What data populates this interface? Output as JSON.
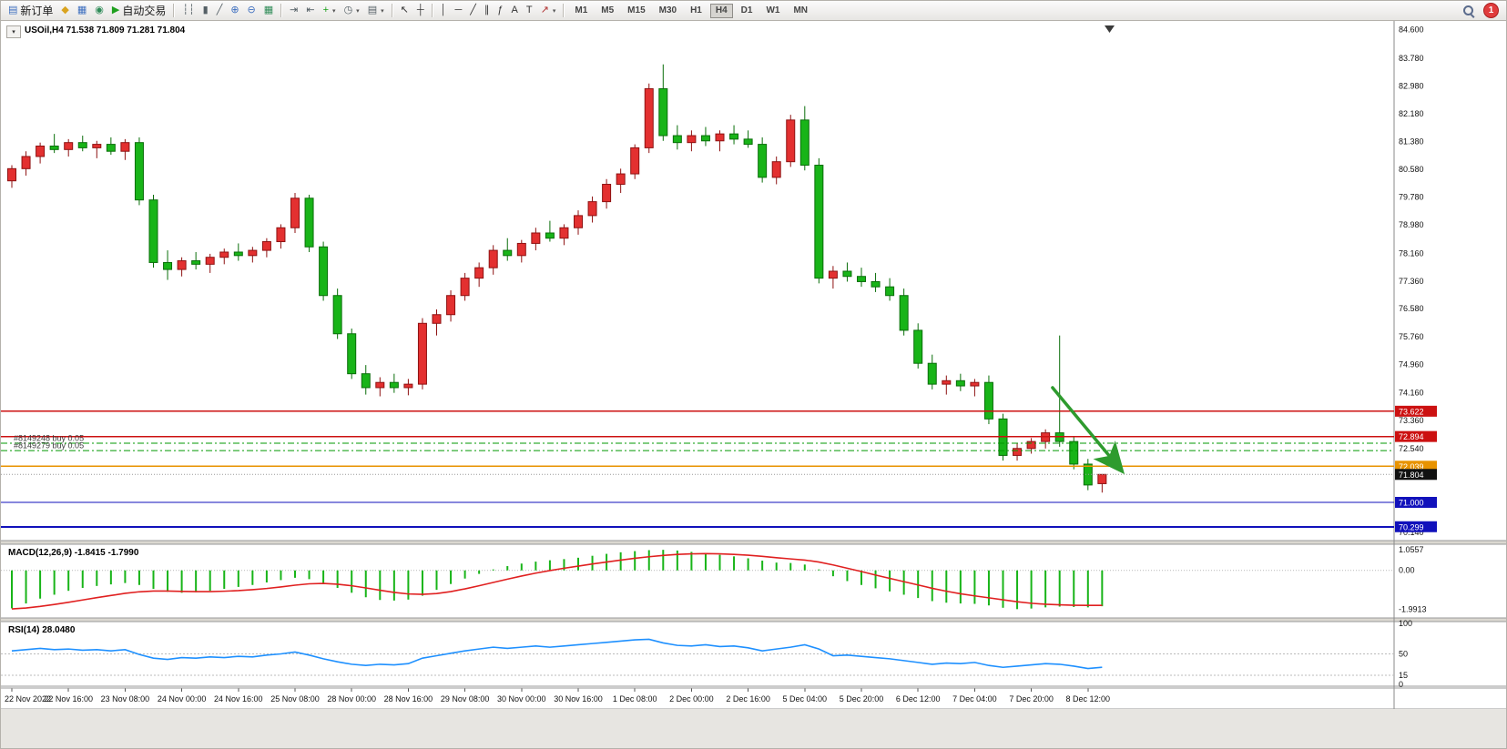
{
  "window": {
    "app_background": "#ececec"
  },
  "toolbar": {
    "active_timeframe": "H4",
    "notification_count": "1",
    "items": [
      {
        "type": "button",
        "name": "new-order-button",
        "glyph": "▤",
        "glyph_color": "#3c6ebf",
        "label": "新订单"
      },
      {
        "type": "icon",
        "name": "profile-icon",
        "glyph": "◆",
        "glyph_color": "#d9a31f"
      },
      {
        "type": "icon",
        "name": "chart-window-icon",
        "glyph": "▦",
        "glyph_color": "#3c6ebf"
      },
      {
        "type": "icon",
        "name": "sound-alert-icon",
        "glyph": "◉",
        "glyph_color": "#2e8b57"
      },
      {
        "type": "button",
        "name": "autotrading-button",
        "glyph": "▶",
        "glyph_color": "#1fa01f",
        "label": "自动交易"
      },
      {
        "type": "sep"
      },
      {
        "type": "icon",
        "name": "bars-chart-icon",
        "glyph": "┆┆",
        "glyph_color": "#556066"
      },
      {
        "type": "icon",
        "name": "candlestick-chart-icon",
        "glyph": "▮",
        "glyph_color": "#556066"
      },
      {
        "type": "icon",
        "name": "line-chart-icon",
        "glyph": "╱",
        "glyph_color": "#556066"
      },
      {
        "type": "icon",
        "name": "zoom-in-icon",
        "glyph": "⊕",
        "glyph_color": "#3c6ebf"
      },
      {
        "type": "icon",
        "name": "zoom-out-icon",
        "glyph": "⊖",
        "glyph_color": "#3c6ebf"
      },
      {
        "type": "icon",
        "name": "tile-windows-icon",
        "glyph": "▦",
        "glyph_color": "#2e8b57"
      },
      {
        "type": "sep"
      },
      {
        "type": "icon",
        "name": "auto-scroll-icon",
        "glyph": "⇥",
        "glyph_color": "#556066"
      },
      {
        "type": "icon",
        "name": "chart-shift-icon",
        "glyph": "⇤",
        "glyph_color": "#556066"
      },
      {
        "type": "icon",
        "name": "indicators-icon",
        "glyph": "+",
        "glyph_color": "#18a018",
        "dropdown": true
      },
      {
        "type": "icon",
        "name": "periods-icon",
        "glyph": "◷",
        "glyph_color": "#556066",
        "dropdown": true
      },
      {
        "type": "icon",
        "name": "templates-icon",
        "glyph": "▤",
        "glyph_color": "#556066",
        "dropdown": true
      },
      {
        "type": "sep"
      },
      {
        "type": "icon",
        "name": "cursor-icon",
        "glyph": "↖",
        "glyph_color": "#333333"
      },
      {
        "type": "icon",
        "name": "crosshair-icon",
        "glyph": "┼",
        "glyph_color": "#333333"
      },
      {
        "type": "sep"
      },
      {
        "type": "icon",
        "name": "vertical-line-icon",
        "glyph": "│",
        "glyph_color": "#333333"
      },
      {
        "type": "icon",
        "name": "horizontal-line-icon",
        "glyph": "─",
        "glyph_color": "#333333"
      },
      {
        "type": "icon",
        "name": "trendline-icon",
        "glyph": "╱",
        "glyph_color": "#333333"
      },
      {
        "type": "icon",
        "name": "channel-icon",
        "glyph": "∥",
        "glyph_color": "#333333"
      },
      {
        "type": "icon",
        "name": "fibonacci-icon",
        "glyph": "ƒ",
        "glyph_color": "#333333"
      },
      {
        "type": "icon",
        "name": "text-icon",
        "glyph": "A",
        "glyph_color": "#333333"
      },
      {
        "type": "icon",
        "name": "text-label-icon",
        "glyph": "T",
        "glyph_color": "#333333"
      },
      {
        "type": "icon",
        "name": "arrows-icon",
        "glyph": "↗",
        "glyph_color": "#b03030",
        "dropdown": true
      },
      {
        "type": "sep"
      },
      {
        "type": "tf",
        "label": "M1"
      },
      {
        "type": "tf",
        "label": "M5"
      },
      {
        "type": "tf",
        "label": "M15"
      },
      {
        "type": "tf",
        "label": "M30"
      },
      {
        "type": "tf",
        "label": "H1"
      },
      {
        "type": "tf",
        "label": "H4"
      },
      {
        "type": "tf",
        "label": "D1"
      },
      {
        "type": "tf",
        "label": "W1"
      },
      {
        "type": "tf",
        "label": "MN"
      },
      {
        "type": "spacer"
      },
      {
        "type": "search",
        "name": "search-icon"
      },
      {
        "type": "badge",
        "name": "notification-badge",
        "label": "1"
      }
    ]
  },
  "chart": {
    "title": "USOil,H4 71.538 71.809 71.281 71.804",
    "symbol_dropdown_glyph": "▾",
    "price_axis_labels": [
      84.6,
      83.78,
      82.98,
      82.18,
      81.38,
      80.58,
      79.78,
      78.98,
      78.16,
      77.36,
      76.58,
      75.76,
      74.96,
      74.16,
      73.36,
      72.54,
      71.74,
      70.94,
      70.14
    ],
    "price_range": {
      "max": 84.85,
      "min": 69.9
    },
    "levels": [
      {
        "name": "resistance-line-1",
        "price": 73.622,
        "color": "#cc1111",
        "style": "solid",
        "width": 1.4,
        "tag": "73.622",
        "tag_bg": "#cc1111"
      },
      {
        "name": "resistance-line-2",
        "price": 72.894,
        "color": "#cc1111",
        "style": "solid",
        "width": 1.4,
        "tag": "72.894",
        "tag_bg": "#cc1111"
      },
      {
        "name": "support-line-orange",
        "price": 72.039,
        "color": "#e89300",
        "style": "solid",
        "width": 1.4,
        "tag": "72.039",
        "tag_bg": "#e89300"
      },
      {
        "name": "support-line-blue-1",
        "price": 71.0,
        "color": "#1111bb",
        "style": "solid",
        "width": 1.4,
        "tag": "71.000",
        "tag_bg": "#1111bb"
      },
      {
        "name": "support-line-blue-2",
        "price": 70.299,
        "color": "#1111bb",
        "style": "solid",
        "width": 2,
        "tag": "70.299",
        "tag_bg": "#1111bb"
      }
    ],
    "current_price": {
      "price": 71.804,
      "tag": "71.804",
      "tag_bg": "#111111",
      "line_color": "#999999"
    },
    "open_positions": [
      {
        "label": "#8149248 buy 0.05",
        "price": 72.7
      },
      {
        "label": "#8149279 buy 0.05",
        "price": 72.49
      }
    ],
    "position_line_color": "#009900",
    "trend_arrow": {
      "from": {
        "bar": 73.5,
        "price": 74.3
      },
      "to": {
        "bar": 78.3,
        "price": 71.95
      },
      "color": "#2e9b2e"
    },
    "candle_colors": {
      "up_fill": "#e33030",
      "up_stroke": "#8e1212",
      "down_fill": "#18b418",
      "down_stroke": "#0a6e0a"
    }
  },
  "chart_data": {
    "type": "candlestick",
    "symbol": "USOil",
    "timeframe": "H4",
    "ohlc_format": [
      "open",
      "high",
      "low",
      "close"
    ],
    "candles": [
      [
        80.25,
        80.7,
        80.05,
        80.6
      ],
      [
        80.6,
        81.1,
        80.4,
        80.95
      ],
      [
        80.95,
        81.35,
        80.75,
        81.25
      ],
      [
        81.25,
        81.6,
        81.05,
        81.15
      ],
      [
        81.15,
        81.45,
        80.95,
        81.35
      ],
      [
        81.35,
        81.55,
        81.1,
        81.2
      ],
      [
        81.2,
        81.4,
        80.9,
        81.3
      ],
      [
        81.3,
        81.5,
        81.0,
        81.1
      ],
      [
        81.1,
        81.45,
        80.85,
        81.35
      ],
      [
        81.35,
        81.5,
        79.55,
        79.7
      ],
      [
        79.7,
        79.85,
        77.75,
        77.9
      ],
      [
        77.9,
        78.25,
        77.4,
        77.7
      ],
      [
        77.7,
        78.05,
        77.5,
        77.95
      ],
      [
        77.95,
        78.2,
        77.7,
        77.85
      ],
      [
        77.85,
        78.15,
        77.6,
        78.05
      ],
      [
        78.05,
        78.3,
        77.85,
        78.2
      ],
      [
        78.2,
        78.45,
        77.95,
        78.1
      ],
      [
        78.1,
        78.35,
        77.9,
        78.25
      ],
      [
        78.25,
        78.6,
        78.05,
        78.5
      ],
      [
        78.5,
        79.0,
        78.3,
        78.9
      ],
      [
        78.9,
        79.9,
        78.75,
        79.75
      ],
      [
        79.75,
        79.85,
        78.2,
        78.35
      ],
      [
        78.35,
        78.5,
        76.8,
        76.95
      ],
      [
        76.95,
        77.15,
        75.7,
        75.85
      ],
      [
        75.85,
        76.0,
        74.55,
        74.7
      ],
      [
        74.7,
        74.95,
        74.1,
        74.3
      ],
      [
        74.3,
        74.6,
        74.05,
        74.45
      ],
      [
        74.45,
        74.7,
        74.15,
        74.3
      ],
      [
        74.3,
        74.55,
        74.08,
        74.4
      ],
      [
        74.4,
        76.3,
        74.25,
        76.15
      ],
      [
        76.15,
        76.55,
        75.8,
        76.4
      ],
      [
        76.4,
        77.1,
        76.2,
        76.95
      ],
      [
        76.95,
        77.6,
        76.8,
        77.45
      ],
      [
        77.45,
        77.9,
        77.2,
        77.75
      ],
      [
        77.75,
        78.4,
        77.55,
        78.25
      ],
      [
        78.25,
        78.6,
        77.95,
        78.1
      ],
      [
        78.1,
        78.55,
        77.9,
        78.45
      ],
      [
        78.45,
        78.9,
        78.25,
        78.75
      ],
      [
        78.75,
        79.1,
        78.5,
        78.6
      ],
      [
        78.6,
        79.0,
        78.4,
        78.9
      ],
      [
        78.9,
        79.4,
        78.7,
        79.25
      ],
      [
        79.25,
        79.8,
        79.05,
        79.65
      ],
      [
        79.65,
        80.3,
        79.45,
        80.15
      ],
      [
        80.15,
        80.6,
        79.9,
        80.45
      ],
      [
        80.45,
        81.3,
        80.3,
        81.2
      ],
      [
        81.2,
        83.05,
        81.05,
        82.9
      ],
      [
        82.9,
        83.6,
        81.4,
        81.55
      ],
      [
        81.55,
        81.85,
        81.15,
        81.35
      ],
      [
        81.35,
        81.7,
        81.1,
        81.55
      ],
      [
        81.55,
        81.8,
        81.25,
        81.4
      ],
      [
        81.4,
        81.7,
        81.1,
        81.6
      ],
      [
        81.6,
        81.85,
        81.3,
        81.45
      ],
      [
        81.45,
        81.7,
        81.2,
        81.3
      ],
      [
        81.3,
        81.5,
        80.2,
        80.35
      ],
      [
        80.35,
        80.95,
        80.15,
        80.8
      ],
      [
        80.8,
        82.15,
        80.65,
        82.0
      ],
      [
        82.0,
        82.4,
        80.55,
        80.7
      ],
      [
        80.7,
        80.9,
        77.3,
        77.45
      ],
      [
        77.45,
        77.8,
        77.15,
        77.65
      ],
      [
        77.65,
        77.9,
        77.35,
        77.5
      ],
      [
        77.5,
        77.75,
        77.2,
        77.35
      ],
      [
        77.35,
        77.6,
        77.05,
        77.2
      ],
      [
        77.2,
        77.45,
        76.8,
        76.95
      ],
      [
        76.95,
        77.15,
        75.8,
        75.95
      ],
      [
        75.95,
        76.15,
        74.85,
        75.0
      ],
      [
        75.0,
        75.25,
        74.25,
        74.4
      ],
      [
        74.4,
        74.65,
        74.1,
        74.5
      ],
      [
        74.5,
        74.7,
        74.2,
        74.35
      ],
      [
        74.35,
        74.55,
        74.05,
        74.45
      ],
      [
        74.45,
        74.65,
        73.25,
        73.4
      ],
      [
        73.4,
        73.55,
        72.2,
        72.35
      ],
      [
        72.35,
        72.7,
        72.2,
        72.55
      ],
      [
        72.55,
        72.85,
        72.4,
        72.75
      ],
      [
        72.75,
        73.1,
        72.55,
        73.0
      ],
      [
        73.0,
        75.8,
        72.6,
        72.75
      ],
      [
        72.75,
        72.9,
        71.95,
        72.1
      ],
      [
        72.1,
        72.25,
        71.35,
        71.5
      ],
      [
        71.538,
        71.809,
        71.281,
        71.804
      ]
    ],
    "time_labels": [
      "22 Nov 2022",
      "22 Nov 16:00",
      "23 Nov 08:00",
      "24 Nov 00:00",
      "24 Nov 16:00",
      "25 Nov 08:00",
      "28 Nov 00:00",
      "28 Nov 16:00",
      "29 Nov 08:00",
      "30 Nov 00:00",
      "30 Nov 16:00",
      "1 Dec 08:00",
      "2 Dec 00:00",
      "2 Dec 16:00",
      "5 Dec 04:00",
      "5 Dec 20:00",
      "6 Dec 12:00",
      "7 Dec 04:00",
      "7 Dec 20:00",
      "8 Dec 12:00"
    ],
    "bars_per_time_label": 4,
    "indicators": [
      {
        "type": "macd",
        "title": "MACD(12,26,9) -1.8415 -1.7990",
        "histogram": [
          -1.95,
          -1.7,
          -1.45,
          -1.25,
          -1.05,
          -0.9,
          -0.8,
          -0.72,
          -0.65,
          -0.75,
          -0.95,
          -1.1,
          -1.15,
          -1.12,
          -1.05,
          -0.95,
          -0.85,
          -0.75,
          -0.62,
          -0.5,
          -0.38,
          -0.45,
          -0.65,
          -0.9,
          -1.15,
          -1.38,
          -1.52,
          -1.55,
          -1.5,
          -1.3,
          -1.0,
          -0.7,
          -0.42,
          -0.18,
          0.05,
          0.22,
          0.35,
          0.45,
          0.52,
          0.58,
          0.65,
          0.75,
          0.85,
          0.93,
          0.99,
          1.04,
          1.0557,
          1.02,
          0.95,
          0.88,
          0.8,
          0.72,
          0.62,
          0.5,
          0.4,
          0.38,
          0.3,
          0.05,
          -0.3,
          -0.55,
          -0.75,
          -0.92,
          -1.08,
          -1.25,
          -1.42,
          -1.58,
          -1.66,
          -1.7,
          -1.72,
          -1.8,
          -1.92,
          -1.9913,
          -1.96,
          -1.9,
          -1.86,
          -1.88,
          -1.9,
          -1.8415
        ],
        "signal": [
          -1.98,
          -1.93,
          -1.85,
          -1.75,
          -1.64,
          -1.52,
          -1.4,
          -1.29,
          -1.18,
          -1.1,
          -1.06,
          -1.06,
          -1.08,
          -1.09,
          -1.09,
          -1.07,
          -1.04,
          -0.99,
          -0.93,
          -0.85,
          -0.76,
          -0.69,
          -0.67,
          -0.71,
          -0.79,
          -0.9,
          -1.02,
          -1.13,
          -1.21,
          -1.23,
          -1.19,
          -1.09,
          -0.95,
          -0.79,
          -0.62,
          -0.45,
          -0.29,
          -0.14,
          -0.01,
          0.11,
          0.22,
          0.33,
          0.43,
          0.53,
          0.62,
          0.7,
          0.77,
          0.82,
          0.85,
          0.86,
          0.85,
          0.82,
          0.78,
          0.72,
          0.65,
          0.59,
          0.53,
          0.43,
          0.28,
          0.11,
          -0.06,
          -0.24,
          -0.41,
          -0.58,
          -0.75,
          -0.92,
          -1.07,
          -1.2,
          -1.31,
          -1.41,
          -1.51,
          -1.61,
          -1.69,
          -1.74,
          -1.77,
          -1.79,
          -1.8,
          -1.799
        ],
        "axis_labels": [
          {
            "value": 1.0557,
            "text": "1.0557"
          },
          {
            "value": 0,
            "text": "0.00"
          },
          {
            "value": -1.9913,
            "text": "-1.9913"
          }
        ],
        "range": {
          "max": 1.25,
          "min": -2.35
        },
        "histogram_color": "#18b418",
        "signal_color": "#e02020"
      },
      {
        "type": "rsi",
        "title": "RSI(14) 28.0480",
        "values": [
          55,
          57,
          59,
          57,
          58,
          56,
          57,
          55,
          57,
          49,
          43,
          41,
          44,
          43,
          45,
          44,
          46,
          45,
          48,
          50,
          53,
          48,
          42,
          37,
          33,
          31,
          33,
          32,
          34,
          43,
          47,
          51,
          55,
          58,
          61,
          59,
          61,
          63,
          61,
          63,
          65,
          67,
          69,
          71,
          73,
          74,
          68,
          64,
          63,
          65,
          62,
          63,
          60,
          55,
          58,
          61,
          65,
          58,
          47,
          48,
          46,
          44,
          42,
          39,
          36,
          33,
          35,
          34,
          36,
          31,
          28,
          30,
          32,
          34,
          33,
          30,
          26,
          28.05
        ],
        "axis_labels": [
          {
            "value": 100,
            "text": "100"
          },
          {
            "value": 50,
            "text": "50"
          },
          {
            "value": 15,
            "text": "15"
          },
          {
            "value": 0,
            "text": "0"
          }
        ],
        "levels": [
          50,
          15
        ],
        "range": {
          "max": 100,
          "min": 0
        },
        "line_color": "#1e90ff"
      }
    ]
  }
}
